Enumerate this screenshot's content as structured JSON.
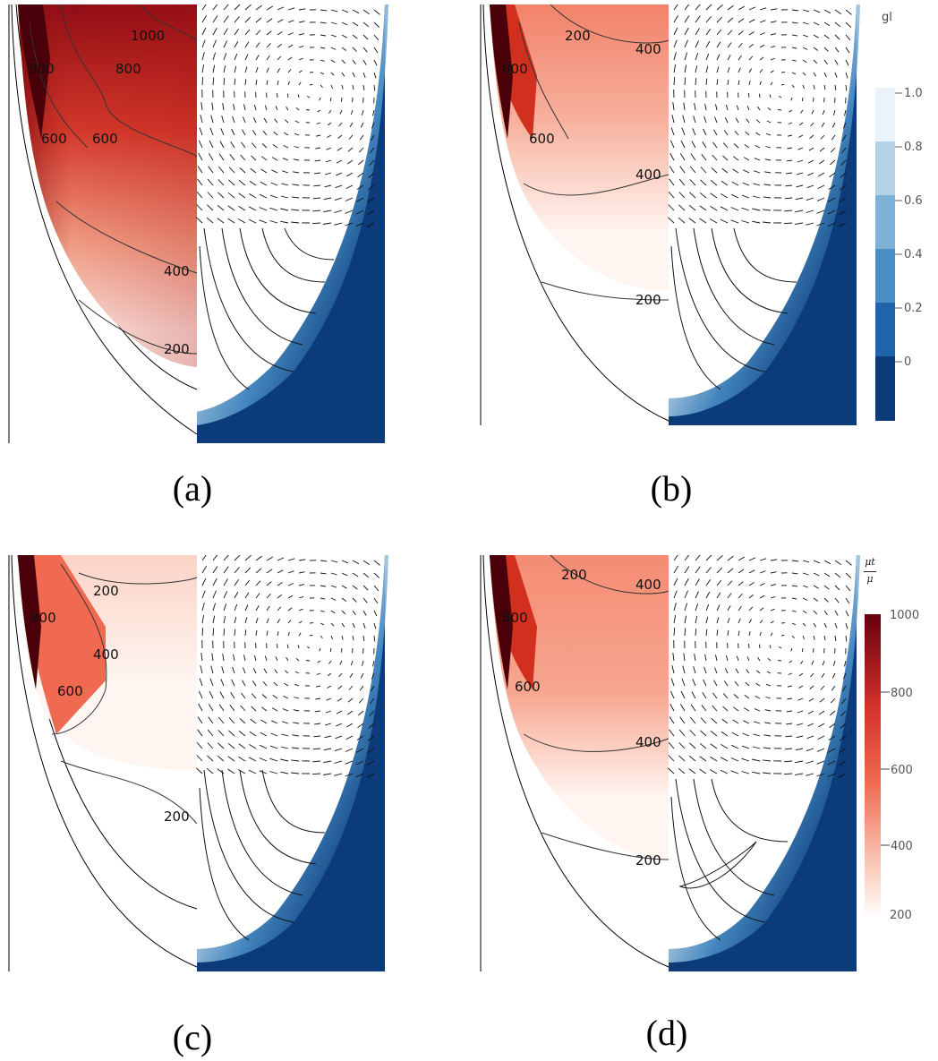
{
  "panels": [
    {
      "caption": "(a)",
      "labels": [
        "1000",
        "800",
        "800",
        "600",
        "600",
        "400",
        "200"
      ],
      "intensity": 1.0
    },
    {
      "caption": "(b)",
      "labels": [
        "200",
        "400",
        "800",
        "600",
        "400",
        "200"
      ],
      "intensity": 0.55
    },
    {
      "caption": "(c)",
      "labels": [
        "200",
        "800",
        "400",
        "600",
        "200"
      ],
      "intensity": 0.35
    },
    {
      "caption": "(d)",
      "labels": [
        "200",
        "400",
        "800",
        "600",
        "400",
        "200"
      ],
      "intensity": 0.6
    }
  ],
  "colorbar_gl": {
    "title": "gl",
    "ticks": [
      "1.0",
      "0.8",
      "0.6",
      "0.4",
      "0.2",
      "0"
    ],
    "colors": [
      "#eaf2fa",
      "#b5d3e8",
      "#7fb2d8",
      "#4a8ec6",
      "#2064ac",
      "#0b3b78"
    ]
  },
  "colorbar_mu": {
    "title_num": "μt",
    "title_den": "μ",
    "ticks": [
      "1000",
      "800",
      "600",
      "400",
      "200"
    ],
    "color_top": "#67000d",
    "color_mid": "#ef6a50",
    "color_bottom": "#ffffff"
  }
}
